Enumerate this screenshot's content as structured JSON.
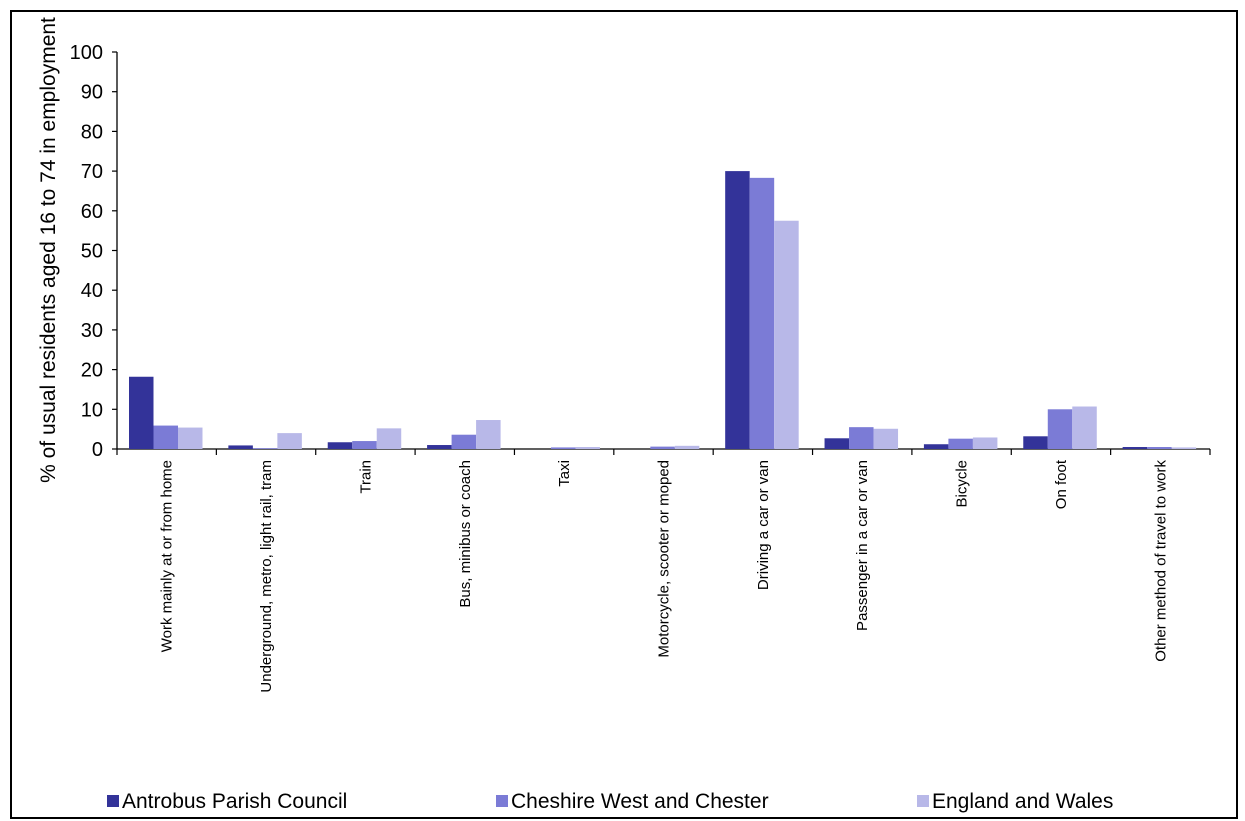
{
  "chart_data": {
    "type": "bar",
    "ylabel": "% of usual residents aged 16 to 74 in employment",
    "xlabel": "",
    "ylim": [
      0,
      100
    ],
    "yticks": [
      0,
      10,
      20,
      30,
      40,
      50,
      60,
      70,
      80,
      90,
      100
    ],
    "grid": false,
    "legend_position": "bottom",
    "categories": [
      "Work mainly at or from home",
      "Underground, metro, light rail, tram",
      "Train",
      "Bus, minibus or coach",
      "Taxi",
      "Motorcycle, scooter or moped",
      "Driving a car or van",
      "Passenger in a car or van",
      "Bicycle",
      "On foot",
      "Other method of travel to work"
    ],
    "series": [
      {
        "name": "Antrobus Parish Council",
        "color": "#333399",
        "values": [
          18.2,
          0.9,
          1.7,
          1.0,
          0.0,
          0.0,
          70.0,
          2.7,
          1.2,
          3.2,
          0.5
        ]
      },
      {
        "name": "Cheshire West and Chester",
        "color": "#7b7bd6",
        "values": [
          5.9,
          0.2,
          2.0,
          3.6,
          0.4,
          0.6,
          68.3,
          5.5,
          2.6,
          10.0,
          0.5
        ]
      },
      {
        "name": "England and Wales",
        "color": "#b8b8e8",
        "values": [
          5.4,
          4.0,
          5.2,
          7.3,
          0.5,
          0.8,
          57.5,
          5.1,
          2.9,
          10.7,
          0.4
        ]
      }
    ]
  }
}
